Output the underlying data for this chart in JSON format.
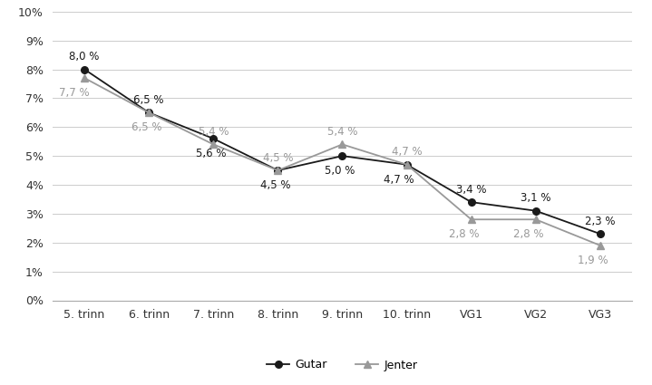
{
  "categories": [
    "5. trinn",
    "6. trinn",
    "7. trinn",
    "8. trinn",
    "9. trinn",
    "10. trinn",
    "VG1",
    "VG2",
    "VG3"
  ],
  "gutar": [
    8.0,
    6.5,
    5.6,
    4.5,
    5.0,
    4.7,
    3.4,
    3.1,
    2.3
  ],
  "jenter": [
    7.7,
    6.5,
    5.4,
    4.5,
    5.4,
    4.7,
    2.8,
    2.8,
    1.9
  ],
  "gutar_labels": [
    "8,0 %",
    "6,5 %",
    "5,6 %",
    "4,5 %",
    "5,0 %",
    "4,7 %",
    "3,4 %",
    "3,1 %",
    "2,3 %"
  ],
  "jenter_labels": [
    "7,7 %",
    "6,5 %",
    "5,4 %",
    "4,5 %",
    "5,4 %",
    "4,7 %",
    "2,8 %",
    "2,8 %",
    "1,9 %"
  ],
  "gutar_color": "#1a1a1a",
  "jenter_color": "#999999",
  "ylim": [
    0,
    10
  ],
  "yticks": [
    0,
    1,
    2,
    3,
    4,
    5,
    6,
    7,
    8,
    9,
    10
  ],
  "ytick_labels": [
    "0%",
    "1%",
    "2%",
    "3%",
    "4%",
    "5%",
    "6%",
    "7%",
    "8%",
    "9%",
    "10%"
  ],
  "legend_gutar": "Gutar",
  "legend_jenter": "Jenter",
  "font_size": 9,
  "label_font_size": 8.5
}
